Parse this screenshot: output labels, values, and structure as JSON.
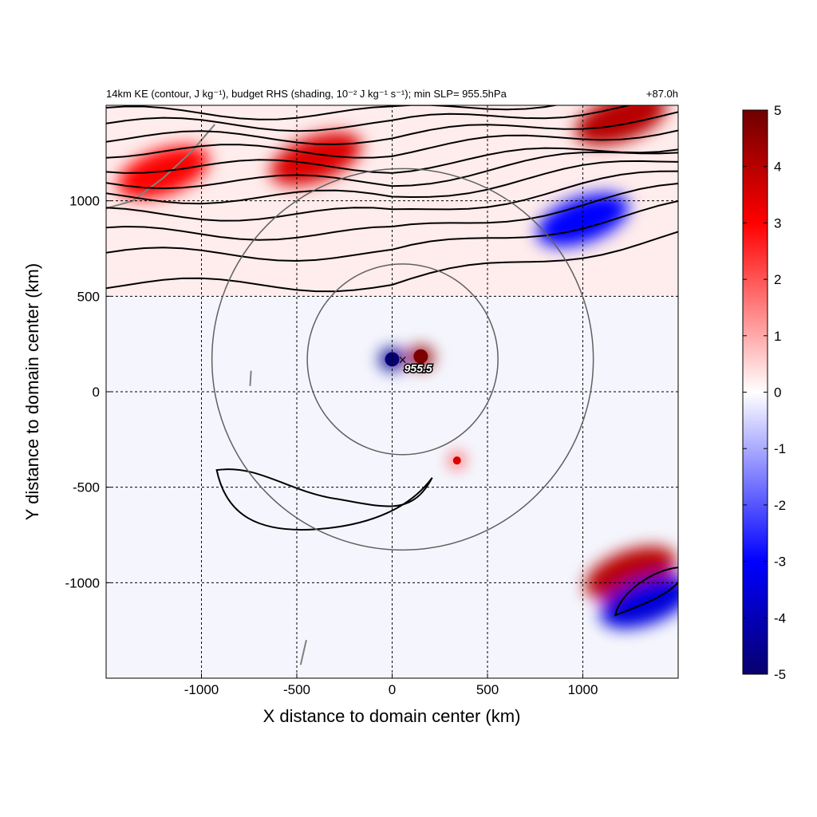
{
  "header": {
    "title_left": "14km KE (contour, J kg⁻¹), budget RHS (shading, 10⁻² J kg⁻¹ s⁻¹); min SLP= 955.5hPa",
    "title_right": "+87.0h"
  },
  "chart_data": {
    "type": "heatmap",
    "title": "14km KE (contour, J kg⁻¹), budget RHS (shading, 10⁻² J kg⁻¹ s⁻¹); min SLP= 955.5hPa",
    "forecast_hour": "+87.0h",
    "xlabel": "X distance to domain center (km)",
    "ylabel": "Y distance to domain center (km)",
    "xlim": [
      -1500,
      1500
    ],
    "ylim": [
      -1500,
      1500
    ],
    "xticks": [
      -1000,
      -500,
      0,
      500,
      1000
    ],
    "yticks": [
      -1000,
      -500,
      0,
      500,
      1000
    ],
    "grid": true,
    "colorbar": {
      "range": [
        -5,
        5
      ],
      "ticks": [
        -5,
        -4,
        -3,
        -2,
        -1,
        0,
        1,
        2,
        3,
        4,
        5
      ],
      "colormap": [
        "#08006e",
        "#0000ff",
        "#ffffff",
        "#ff0000",
        "#6e0000"
      ]
    },
    "storm_center": {
      "x": 55,
      "y": 170,
      "min_slp_label": "955.5"
    },
    "range_rings_km": [
      500,
      1000
    ],
    "shading_features": [
      {
        "kind": "dipole-positive",
        "x": 150,
        "y": 180,
        "value": 4.5
      },
      {
        "kind": "dipole-negative",
        "x": 0,
        "y": 170,
        "value": -4.5
      },
      {
        "kind": "spot-positive",
        "x": 340,
        "y": -360,
        "value": 3
      },
      {
        "kind": "band-positive",
        "x": -1200,
        "y": 1150,
        "value": 3
      },
      {
        "kind": "band-positive",
        "x": -400,
        "y": 1220,
        "value": 3.5
      },
      {
        "kind": "band-positive",
        "x": 1250,
        "y": -950,
        "value": 4
      },
      {
        "kind": "band-negative",
        "x": 1330,
        "y": -1100,
        "value": -3.5
      },
      {
        "kind": "band-negative",
        "x": 1000,
        "y": 900,
        "value": -3
      },
      {
        "kind": "band-positive",
        "x": 1200,
        "y": 1430,
        "value": 4
      }
    ]
  },
  "colors": {
    "contour": "#000000",
    "ring": "#606060",
    "coast": "#808080",
    "grid": "#000000"
  }
}
